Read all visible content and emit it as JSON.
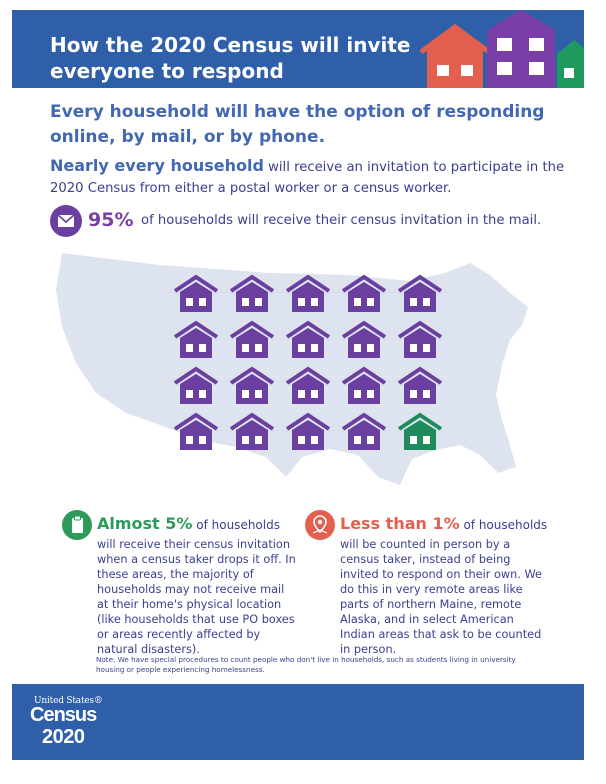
{
  "header": {
    "title": "How the 2020 Census will invite everyone to respond"
  },
  "intro": {
    "lead": "Every household will have the option of responding online, by mail, or by phone.",
    "nearly_bold": "Nearly every household",
    "nearly_rest": " will receive an invitation to participate in the 2020 Census from either a postal worker or a census worker."
  },
  "mail": {
    "icon": "envelope-icon",
    "percent": "95%",
    "text": "of households will receive their census invitation in the mail."
  },
  "map": {
    "house_rows": 4,
    "house_cols": 5,
    "purple_color": "#6b3fa0",
    "green_color": "#1f8a5c"
  },
  "drop_off": {
    "icon": "clipboard-icon",
    "color": "#2e9a5a",
    "head_bold": "Almost 5%",
    "head_rest": " of households",
    "body": "will receive their census invitation when a census taker drops it off. In these areas, the majority of households may not receive mail at their home's physical location (like households that use PO boxes or areas recently affected by natural disasters)."
  },
  "in_person": {
    "icon": "location-pin-icon",
    "color": "#e4604e",
    "head_bold": "Less than 1%",
    "head_rest": " of households",
    "body": "will be counted in person by a census taker, instead of being invited to respond on their own. We do this in very remote areas like parts of northern Maine, remote Alaska, and in select American Indian areas that ask to be counted in person."
  },
  "note": "Note: We have special procedures to count people who don't live in households, such as students living in university housing or people experiencing homelessness.",
  "footer": {
    "logo_line1": "United States®",
    "logo_line2": "Census",
    "logo_line3": "2020",
    "banner_color": "#2f5fa8"
  }
}
